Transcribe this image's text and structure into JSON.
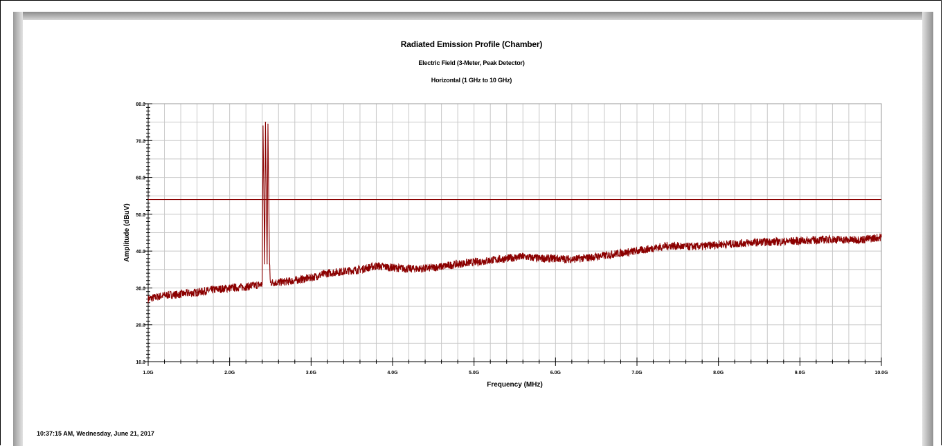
{
  "header": {
    "title": "Radiated Emission Profile (Chamber)",
    "subtitle_1": "Electric Field (3-Meter, Peak Detector)",
    "subtitle_2": "Horizontal (1 GHz to 10 GHz)"
  },
  "footer": {
    "timestamp": "10:37:15 AM, Wednesday, June 21, 2017"
  },
  "colors": {
    "trace": "#8b0000",
    "limit": "#8b0000",
    "grid": "#c8c8c8",
    "bevel": "#a8a8a8"
  },
  "chart_data": {
    "type": "line",
    "title": "Radiated Emission Profile (Chamber)",
    "xlabel": "Frequency (MHz)",
    "ylabel": "Amplitude (dBuV)",
    "xlim": [
      1.0,
      10.0
    ],
    "ylim": [
      10.0,
      80.0
    ],
    "grid": true,
    "x_ticks": [
      "1.0G",
      "2.0G",
      "3.0G",
      "4.0G",
      "5.0G",
      "6.0G",
      "7.0G",
      "8.0G",
      "9.0G",
      "10.0G"
    ],
    "y_ticks": [
      "10.0",
      "20.0",
      "30.0",
      "40.0",
      "50.0",
      "60.0",
      "70.0",
      "80.0"
    ],
    "limit_line": {
      "value": 54.0
    },
    "series": [
      {
        "x": [
          1.0,
          1.2,
          1.4,
          1.6,
          1.8,
          2.0,
          2.2,
          2.4,
          2.41,
          2.43,
          2.44,
          2.46,
          2.47,
          2.49,
          2.5,
          2.6,
          2.8,
          3.0,
          3.2,
          3.4,
          3.6,
          3.8,
          4.0,
          4.2,
          4.4,
          4.6,
          4.8,
          5.0,
          5.2,
          5.4,
          5.6,
          5.8,
          6.0,
          6.2,
          6.4,
          6.6,
          6.8,
          7.0,
          7.2,
          7.4,
          7.6,
          7.8,
          8.0,
          8.2,
          8.4,
          8.6,
          8.8,
          9.0,
          9.2,
          9.4,
          9.6,
          9.8,
          10.0
        ],
        "y": [
          27.0,
          28.0,
          28.3,
          28.8,
          29.5,
          30.0,
          30.3,
          31.0,
          74.0,
          36.5,
          75.0,
          36.5,
          74.5,
          36.5,
          31.5,
          31.5,
          32.0,
          32.8,
          34.0,
          34.5,
          35.0,
          36.0,
          35.5,
          35.2,
          35.3,
          35.8,
          36.5,
          37.0,
          37.5,
          38.0,
          38.5,
          38.0,
          38.0,
          37.8,
          38.2,
          38.8,
          39.5,
          40.0,
          40.8,
          41.5,
          41.2,
          41.3,
          41.8,
          42.0,
          42.3,
          42.5,
          42.6,
          42.8,
          43.0,
          43.2,
          43.0,
          43.2,
          43.8
        ]
      }
    ]
  }
}
